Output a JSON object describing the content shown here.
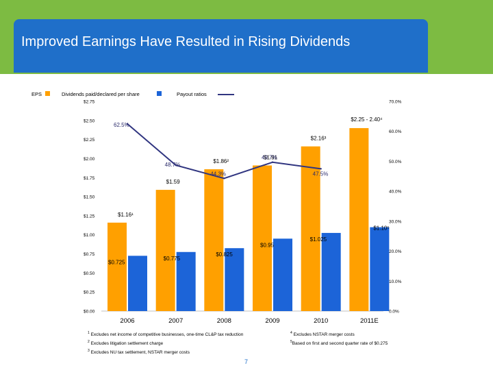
{
  "header": {
    "title": "Improved Earnings Have Resulted in Rising Dividends"
  },
  "colors": {
    "eps": "#ffa000",
    "dividend": "#1c64d8",
    "payout": "#303580",
    "title_bg": "#1f6fc9",
    "band": "#7dbb42"
  },
  "chart_data": {
    "type": "bar",
    "categories": [
      "2006",
      "2007",
      "2008",
      "2009",
      "2010",
      "2011E"
    ],
    "legend": {
      "eps": "EPS",
      "dividend": "Dividends paid/declared per share",
      "payout": "Payout ratios"
    },
    "series": [
      {
        "name": "EPS",
        "values": [
          1.16,
          1.59,
          1.86,
          1.91,
          2.16,
          2.4
        ]
      },
      {
        "name": "Dividends paid/declared per share",
        "values": [
          0.725,
          0.775,
          0.825,
          0.95,
          1.025,
          1.1
        ]
      }
    ],
    "payout_series": {
      "name": "Payout ratios",
      "values": [
        62.5,
        48.7,
        44.3,
        49.7,
        47.5
      ]
    },
    "eps_labels": [
      "$1.16¹",
      "$1.59",
      "$1.86²",
      "$1.91",
      "$2.16³",
      "$2.25 - 2.40⁴"
    ],
    "dividend_labels": [
      "$0.725",
      "$0.775",
      "$0.825",
      "$0.95",
      "$1.025",
      "$1.10⁵"
    ],
    "payout_labels": [
      "62.5%",
      "48.7%",
      "44.3%",
      "49.7%",
      "47.5%"
    ],
    "y_left": {
      "ylim": [
        0,
        2.75
      ],
      "ticks": [
        "$0.00",
        "$0.25",
        "$0.50",
        "$0.75",
        "$1.00",
        "$1.25",
        "$1.50",
        "$1.75",
        "$2.00",
        "$2.25",
        "$2.50",
        "$2.75"
      ]
    },
    "y_right": {
      "ylim": [
        0,
        70
      ],
      "ticks": [
        "0.0%",
        "10.0%",
        "20.0%",
        "30.0%",
        "40.0%",
        "50.0%",
        "60.0%",
        "70.0%"
      ]
    }
  },
  "footnotes": {
    "n1": "Excludes net income of competitive businesses, one-time CL&P tax reduction",
    "n2": "Excludes litigation settlement charge",
    "n3": "Excludes NU tax settlement, NSTAR merger costs",
    "n4": "Excludes NSTAR merger costs",
    "n5": "Based on first and second quarter rate of $0.275"
  },
  "page_number": "7"
}
